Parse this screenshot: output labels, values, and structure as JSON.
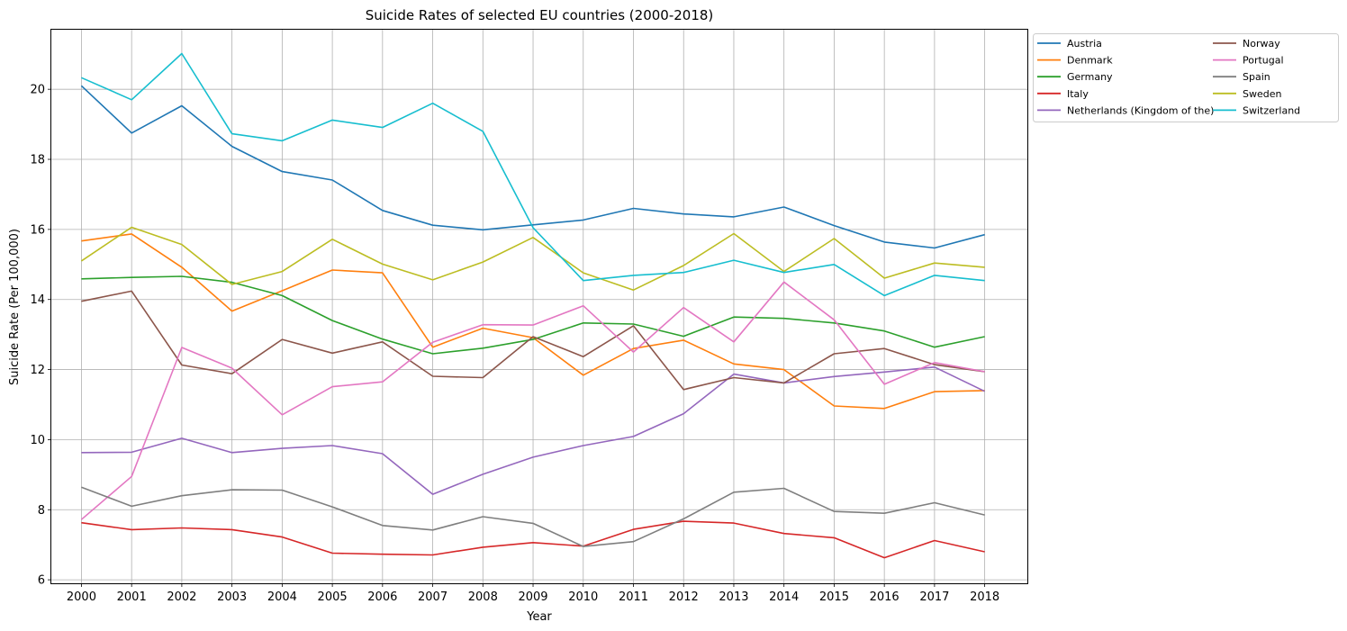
{
  "chart_data": {
    "type": "line",
    "title": "Suicide Rates of selected EU countries (2000-2018)",
    "xlabel": "Year",
    "ylabel": "Suicide Rate (Per 100,000)",
    "x": [
      2000,
      2001,
      2002,
      2003,
      2004,
      2005,
      2006,
      2007,
      2008,
      2009,
      2010,
      2011,
      2012,
      2013,
      2014,
      2015,
      2016,
      2017,
      2018
    ],
    "xlim": [
      1999.4,
      2018.85
    ],
    "ylim": [
      5.9,
      21.7
    ],
    "yticks": [
      6,
      8,
      10,
      12,
      14,
      16,
      18,
      20
    ],
    "grid": true,
    "legend_placement": "outside-top-right",
    "series": [
      {
        "name": "Austria",
        "color": "#1f77b4",
        "values": [
          20.1,
          18.75,
          19.53,
          18.37,
          17.65,
          17.41,
          16.54,
          16.12,
          15.99,
          16.13,
          16.27,
          16.6,
          16.44,
          16.36,
          16.64,
          16.11,
          15.64,
          15.47,
          15.85
        ]
      },
      {
        "name": "Denmark",
        "color": "#ff7f0e",
        "values": [
          15.67,
          15.87,
          14.92,
          13.67,
          14.25,
          14.84,
          14.76,
          12.64,
          13.18,
          12.91,
          11.84,
          12.6,
          12.84,
          12.16,
          12.0,
          10.96,
          10.89,
          11.37,
          11.4
        ]
      },
      {
        "name": "Germany",
        "color": "#2ca02c",
        "values": [
          14.59,
          14.63,
          14.66,
          14.49,
          14.11,
          13.4,
          12.87,
          12.45,
          12.61,
          12.86,
          13.33,
          13.3,
          12.95,
          13.5,
          13.46,
          13.33,
          13.1,
          12.64,
          12.94
        ]
      },
      {
        "name": "Italy",
        "color": "#d62728",
        "values": [
          7.63,
          7.43,
          7.48,
          7.43,
          7.22,
          6.76,
          6.73,
          6.71,
          6.93,
          7.06,
          6.96,
          7.44,
          7.67,
          7.62,
          7.32,
          7.2,
          6.63,
          7.12,
          6.8
        ]
      },
      {
        "name": "Netherlands (Kingdom of the)",
        "color": "#9467bd",
        "values": [
          9.63,
          9.64,
          10.04,
          9.63,
          9.75,
          9.83,
          9.6,
          8.44,
          9.01,
          9.5,
          9.83,
          10.09,
          10.74,
          11.87,
          11.62,
          11.8,
          11.93,
          12.07,
          11.38
        ]
      },
      {
        "name": "Norway",
        "color": "#8c564b",
        "values": [
          13.95,
          14.24,
          12.13,
          11.88,
          12.86,
          12.47,
          12.79,
          11.81,
          11.77,
          12.94,
          12.37,
          13.25,
          11.43,
          11.77,
          11.62,
          12.45,
          12.6,
          12.14,
          11.94
        ]
      },
      {
        "name": "Portugal",
        "color": "#e377c2",
        "values": [
          7.72,
          8.95,
          12.63,
          12.04,
          10.71,
          11.51,
          11.65,
          12.78,
          13.28,
          13.27,
          13.82,
          12.5,
          13.77,
          12.79,
          14.5,
          13.42,
          11.58,
          12.2,
          11.94
        ]
      },
      {
        "name": "Spain",
        "color": "#7f7f7f",
        "values": [
          8.64,
          8.1,
          8.4,
          8.57,
          8.56,
          8.08,
          7.55,
          7.42,
          7.8,
          7.61,
          6.95,
          7.09,
          7.74,
          8.5,
          8.61,
          7.95,
          7.9,
          8.2,
          7.85
        ]
      },
      {
        "name": "Sweden",
        "color": "#bcbd22",
        "values": [
          15.1,
          16.06,
          15.57,
          14.43,
          14.8,
          15.72,
          15.01,
          14.56,
          15.07,
          15.77,
          14.76,
          14.27,
          14.97,
          15.88,
          14.8,
          15.74,
          14.61,
          15.04,
          14.92
        ]
      },
      {
        "name": "Switzerland",
        "color": "#17becf",
        "values": [
          20.33,
          19.7,
          21.02,
          18.73,
          18.53,
          19.12,
          18.91,
          19.6,
          18.8,
          16.05,
          14.54,
          14.69,
          14.77,
          15.12,
          14.77,
          15.0,
          14.11,
          14.69,
          14.54
        ]
      }
    ]
  }
}
